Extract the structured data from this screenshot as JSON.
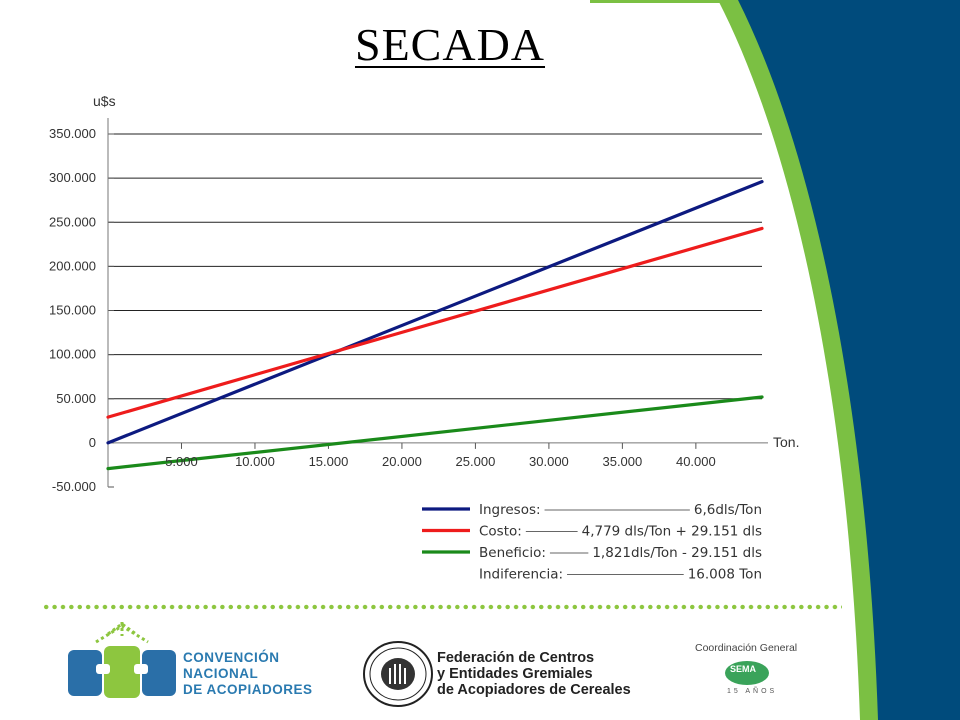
{
  "slide": {
    "title": "SECADA",
    "colors": {
      "navy": "#004b7c",
      "green_band": "#7bc043"
    }
  },
  "chart_data": {
    "type": "line",
    "ylabel": "u$s",
    "xlabel": "Ton.",
    "xlim": [
      0,
      44500
    ],
    "ylim": [
      -50000,
      350000
    ],
    "x_ticks": [
      "5.000",
      "10.000",
      "15.000",
      "20.000",
      "25.000",
      "30.000",
      "35.000",
      "40.000"
    ],
    "y_ticks": [
      "350.000",
      "300.000",
      "250.000",
      "200.000",
      "150.000",
      "100.000",
      "50.000",
      "0",
      "-50.000"
    ],
    "grid": true,
    "legend_position": "bottom-right",
    "series": [
      {
        "name": "Ingresos",
        "color": "#0d1a80",
        "x": [
          0,
          44500
        ],
        "y": [
          0,
          296000
        ]
      },
      {
        "name": "Costo",
        "color": "#ee1c1c",
        "x": [
          0,
          44500
        ],
        "y": [
          29151,
          243000
        ]
      },
      {
        "name": "Beneficio",
        "color": "#1a8a1a",
        "x": [
          0,
          44500
        ],
        "y": [
          -29151,
          52000
        ]
      }
    ],
    "legend": [
      {
        "label": "Ingresos:",
        "formula": "6,6dls/Ton",
        "color": "#0d1a80"
      },
      {
        "label": "Costo:",
        "formula": "4,779 dls/Ton + 29.151 dls",
        "color": "#ee1c1c"
      },
      {
        "label": "Beneficio:",
        "formula": "1,821dls/Ton - 29.151 dls",
        "color": "#1a8a1a"
      },
      {
        "label": "Indiferencia:",
        "formula": "16.008 Ton",
        "color": null
      }
    ]
  },
  "footer": {
    "convencion": [
      "CONVENCIÓN",
      "NACIONAL",
      "DE ACOPIADORES"
    ],
    "federacion": [
      "Federación de Centros",
      "y Entidades Gremiales",
      "de Acopiadores de Cereales"
    ],
    "coordinacion": "Coordinación General",
    "sema_name": "SEMA",
    "sema_years": "15 AÑOS"
  }
}
